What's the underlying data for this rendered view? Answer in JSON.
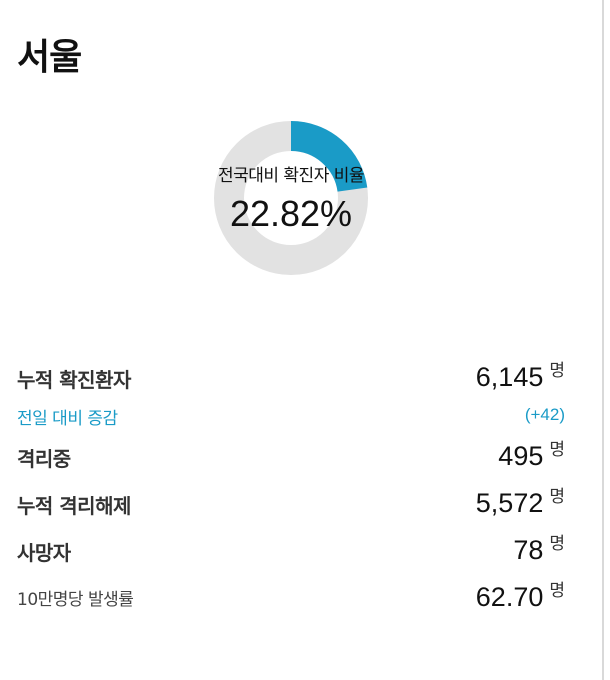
{
  "region": {
    "title": "서울"
  },
  "ratio_chart": {
    "label": "전국대비 확진자 비율",
    "value_text": "22.82%",
    "percent": 22.82,
    "fill_color": "#1a9bc7",
    "track_color": "#e2e2e2"
  },
  "stats": {
    "cumulative": {
      "label": "누적 확진환자",
      "value": "6,145",
      "unit": "명"
    },
    "daily_change": {
      "label": "전일 대비 증감",
      "value": "(+42)"
    },
    "isolating": {
      "label": "격리중",
      "value": "495",
      "unit": "명"
    },
    "released": {
      "label": "누적 격리해제",
      "value": "5,572",
      "unit": "명"
    },
    "deaths": {
      "label": "사망자",
      "value": "78",
      "unit": "명"
    },
    "incidence": {
      "label": "10만명당 발생률",
      "value": "62.70",
      "unit": "명"
    }
  },
  "colors": {
    "accent": "#1a9bc7",
    "text": "#111111",
    "border": "#d9d9d9"
  }
}
